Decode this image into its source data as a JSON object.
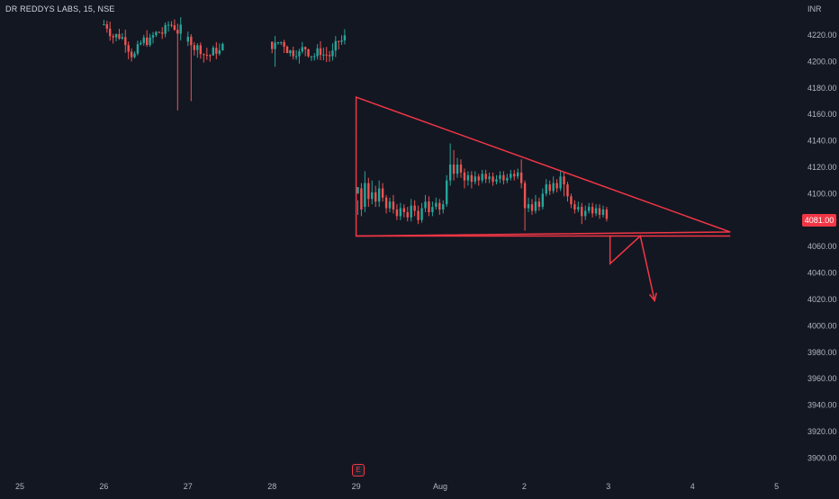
{
  "symbol": "DR REDDYS LABS, 15, NSE",
  "currency": "INR",
  "last_price_label": "4081.00",
  "event_marker": "E",
  "colors": {
    "up": "#26a69a",
    "down": "#ef5350",
    "drawing": "#f23645",
    "background": "#131722",
    "text": "#b2b5be"
  },
  "chart_data": {
    "type": "candlestick",
    "title": "DR REDDYS LABS, 15, NSE",
    "ylabel": "INR",
    "ylim": [
      3890,
      4240
    ],
    "y_ticks": [
      4220,
      4200,
      4180,
      4160,
      4140,
      4120,
      4100,
      4080,
      4060,
      4040,
      4020,
      4000,
      3980,
      3960,
      3940,
      3920,
      3900
    ],
    "y_tick_labels": [
      "4220.00",
      "4200.00",
      "4180.00",
      "4160.00",
      "4140.00",
      "4120.00",
      "4100.00",
      "4080.00",
      "4060.00",
      "4040.00",
      "4020.00",
      "4000.00",
      "3980.00",
      "3960.00",
      "3940.00",
      "3920.00",
      "3900.00"
    ],
    "x_ticks": [
      {
        "label": "25",
        "t": 0
      },
      {
        "label": "26",
        "t": 1
      },
      {
        "label": "27",
        "t": 2
      },
      {
        "label": "28",
        "t": 3
      },
      {
        "label": "29",
        "t": 4
      },
      {
        "label": "Aug",
        "t": 5
      },
      {
        "label": "2",
        "t": 6
      },
      {
        "label": "3",
        "t": 7
      },
      {
        "label": "4",
        "t": 8
      },
      {
        "label": "5",
        "t": 9
      }
    ],
    "grid": false,
    "last_price": 4081,
    "sessions": [
      {
        "start": 1.0,
        "end": 1.95,
        "open": 4228,
        "close": 4215,
        "high": 4240,
        "low": 4200,
        "min_low": 4163,
        "max_high": 4240,
        "visible_top": true
      },
      {
        "start": 2.0,
        "end": 2.45,
        "open": 4215,
        "close": 4240,
        "high": 4240,
        "low": 4175,
        "min_low": 4170,
        "max_high": 4240,
        "visible_top": true
      },
      {
        "start": 3.0,
        "end": 3.9,
        "open": 4215,
        "close": 4230,
        "high": 4240,
        "low": 4200,
        "min_low": 4196,
        "max_high": 4240,
        "visible_top": true
      }
    ],
    "pattern_candles": [
      [
        4100,
        4105,
        4095,
        4084
      ],
      [
        4104,
        4088,
        4108,
        4083
      ],
      [
        4090,
        4108,
        4117,
        4086
      ],
      [
        4108,
        4096,
        4112,
        4090
      ],
      [
        4096,
        4101,
        4110,
        4092
      ],
      [
        4101,
        4094,
        4106,
        4090
      ],
      [
        4094,
        4104,
        4110,
        4090
      ],
      [
        4104,
        4097,
        4108,
        4094
      ],
      [
        4097,
        4089,
        4099,
        4085
      ],
      [
        4089,
        4094,
        4097,
        4086
      ],
      [
        4094,
        4088,
        4099,
        4085
      ],
      [
        4088,
        4083,
        4092,
        4080
      ],
      [
        4083,
        4089,
        4093,
        4080
      ],
      [
        4089,
        4086,
        4092,
        4082
      ],
      [
        4086,
        4082,
        4090,
        4079
      ],
      [
        4082,
        4091,
        4096,
        4079
      ],
      [
        4091,
        4087,
        4095,
        4083
      ],
      [
        4087,
        4080,
        4091,
        4077
      ],
      [
        4080,
        4089,
        4093,
        4078
      ],
      [
        4089,
        4094,
        4099,
        4086
      ],
      [
        4094,
        4086,
        4098,
        4083
      ],
      [
        4086,
        4090,
        4094,
        4083
      ],
      [
        4090,
        4093,
        4097,
        4088
      ],
      [
        4093,
        4088,
        4096,
        4084
      ],
      [
        4088,
        4092,
        4095,
        4085
      ],
      [
        4092,
        4110,
        4114,
        4090
      ],
      [
        4110,
        4122,
        4138,
        4106
      ],
      [
        4122,
        4115,
        4133,
        4110
      ],
      [
        4115,
        4122,
        4127,
        4112
      ],
      [
        4122,
        4116,
        4126,
        4112
      ],
      [
        4116,
        4110,
        4119,
        4104
      ],
      [
        4110,
        4114,
        4117,
        4106
      ],
      [
        4114,
        4109,
        4117,
        4104
      ],
      [
        4109,
        4113,
        4117,
        4107
      ],
      [
        4113,
        4110,
        4115,
        4106
      ],
      [
        4110,
        4115,
        4118,
        4108
      ],
      [
        4115,
        4111,
        4118,
        4108
      ],
      [
        4111,
        4113,
        4116,
        4108
      ],
      [
        4113,
        4109,
        4116,
        4106
      ],
      [
        4109,
        4111,
        4114,
        4107
      ],
      [
        4111,
        4114,
        4117,
        4108
      ],
      [
        4114,
        4110,
        4117,
        4107
      ],
      [
        4110,
        4112,
        4115,
        4108
      ],
      [
        4112,
        4115,
        4118,
        4110
      ],
      [
        4115,
        4113,
        4118,
        4110
      ],
      [
        4113,
        4116,
        4119,
        4111
      ],
      [
        4116,
        4108,
        4126,
        4104
      ],
      [
        4108,
        4089,
        4110,
        4072
      ],
      [
        4089,
        4092,
        4097,
        4086
      ],
      [
        4092,
        4087,
        4096,
        4084
      ],
      [
        4087,
        4094,
        4099,
        4085
      ],
      [
        4094,
        4090,
        4097,
        4087
      ],
      [
        4090,
        4100,
        4104,
        4088
      ],
      [
        4100,
        4107,
        4111,
        4098
      ],
      [
        4107,
        4102,
        4110,
        4099
      ],
      [
        4102,
        4108,
        4113,
        4100
      ],
      [
        4108,
        4104,
        4111,
        4101
      ],
      [
        4104,
        4113,
        4117,
        4102
      ],
      [
        4113,
        4107,
        4116,
        4098
      ],
      [
        4107,
        4098,
        4109,
        4094
      ],
      [
        4098,
        4092,
        4100,
        4089
      ],
      [
        4092,
        4088,
        4095,
        4085
      ],
      [
        4088,
        4090,
        4094,
        4086
      ],
      [
        4090,
        4083,
        4093,
        4077
      ],
      [
        4083,
        4087,
        4091,
        4080
      ],
      [
        4087,
        4090,
        4093,
        4085
      ],
      [
        4090,
        4085,
        4093,
        4082
      ],
      [
        4085,
        4089,
        4092,
        4083
      ],
      [
        4089,
        4084,
        4092,
        4081
      ],
      [
        4084,
        4088,
        4091,
        4082
      ],
      [
        4088,
        4081,
        4090,
        4079
      ]
    ],
    "drawings": {
      "triangle": [
        [
          4.0,
          4173
        ],
        [
          8.45,
          4071
        ],
        [
          4.0,
          4068
        ]
      ],
      "base_line": {
        "from": [
          4.0,
          4068
        ],
        "to": [
          8.45,
          4068
        ]
      },
      "projection_path": [
        [
          7.02,
          4068
        ],
        [
          7.02,
          4047
        ],
        [
          7.38,
          4068
        ],
        [
          7.55,
          4019
        ]
      ]
    }
  }
}
